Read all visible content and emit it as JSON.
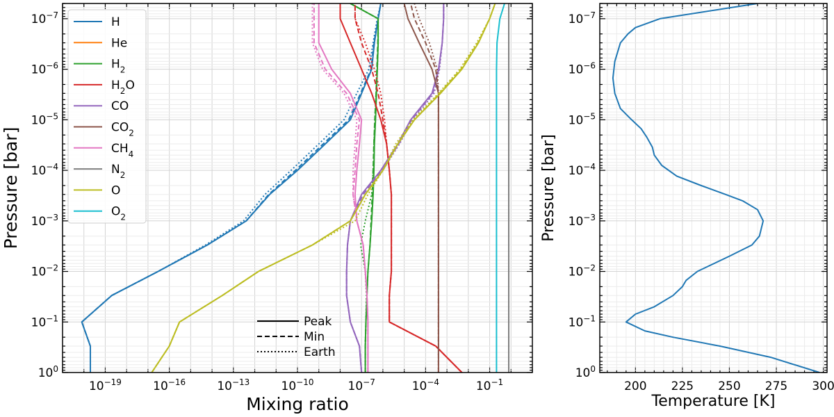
{
  "chart_data": [
    {
      "type": "line",
      "xlabel": "Mixing ratio",
      "ylabel": "Pressure [bar]",
      "xscale": "log",
      "yscale": "log",
      "y_inverted": true,
      "xlim": [
        1e-21,
        10
      ],
      "ylim": [
        1,
        5e-08
      ],
      "grid": true,
      "x_tick_labels": [
        "10⁻¹⁹",
        "10⁻¹⁶",
        "10⁻¹³",
        "10⁻¹⁰",
        "10⁻⁷",
        "10⁻⁴",
        "10⁻¹"
      ],
      "y_tick_labels": [
        "10⁰",
        "10⁻¹",
        "10⁻²",
        "10⁻³",
        "10⁻⁴",
        "10⁻⁵",
        "10⁻⁶",
        "10⁻⁷"
      ],
      "legend_position": "upper-left",
      "legend": [
        {
          "label": "H",
          "color": "#1f77b4"
        },
        {
          "label": "He",
          "color": "#ff7f0e"
        },
        {
          "label": "H₂",
          "color": "#2ca02c"
        },
        {
          "label": "H₂O",
          "color": "#d62728"
        },
        {
          "label": "CO",
          "color": "#9467bd"
        },
        {
          "label": "CO₂",
          "color": "#8c564b"
        },
        {
          "label": "CH₄",
          "color": "#e377c2"
        },
        {
          "label": "N₂",
          "color": "#7f7f7f"
        },
        {
          "label": "O",
          "color": "#bcbd22"
        },
        {
          "label": "O₂",
          "color": "#17becf"
        }
      ],
      "style_legend_position": "lower-center",
      "style_legend": [
        {
          "label": "Peak",
          "dash": "solid"
        },
        {
          "label": "Min",
          "dash": "dashed"
        },
        {
          "label": "Earth",
          "dash": "dotted"
        }
      ],
      "pressure_levels": [
        1,
        0.3,
        0.1,
        0.03,
        0.01,
        0.003,
        0.001,
        0.0003,
        0.0001,
        3e-05,
        1e-05,
        3e-06,
        1e-06,
        3e-07,
        1e-07,
        5e-08
      ],
      "series": [
        {
          "name": "H",
          "color": "#1f77b4",
          "style": "solid",
          "x": [
            2e-20,
            2e-20,
            8e-21,
            2e-19,
            3e-17,
            6e-15,
            4e-13,
            5e-12,
            1e-10,
            2e-09,
            3e-08,
            1e-07,
            3e-07,
            4e-07,
            6e-07,
            8e-07
          ]
        },
        {
          "name": "H",
          "color": "#1f77b4",
          "style": "dashed",
          "x": [
            2e-20,
            2e-20,
            8e-21,
            2e-19,
            3e-17,
            6e-15,
            4e-13,
            4.5e-12,
            8e-11,
            1.6e-09,
            2.5e-08,
            9e-08,
            2.8e-07,
            3.8e-07,
            6e-07,
            8e-07
          ]
        },
        {
          "name": "H",
          "color": "#1f77b4",
          "style": "dotted",
          "x": [
            2e-20,
            2e-20,
            8e-21,
            2e-19,
            3e-17,
            5e-15,
            3e-13,
            3e-12,
            5e-11,
            1e-09,
            1.5e-08,
            6e-08,
            2.2e-07,
            3.5e-07,
            5.5e-07,
            8e-07
          ]
        },
        {
          "name": "H₂",
          "color": "#2ca02c",
          "style": "solid",
          "x": [
            1.5e-07,
            1.5e-07,
            1.6e-07,
            1.8e-07,
            2e-07,
            2.5e-07,
            3e-07,
            3.5e-07,
            3.8e-07,
            4e-07,
            4.5e-07,
            5e-07,
            5.5e-07,
            6e-07,
            6e-07,
            3e-08
          ]
        },
        {
          "name": "H₂",
          "color": "#2ca02c",
          "style": "dashed",
          "x": [
            1.5e-07,
            1.5e-07,
            1.6e-07,
            1.8e-07,
            2e-07,
            2.5e-07,
            2.8e-07,
            3.2e-07,
            3.5e-07,
            3.8e-07,
            4.2e-07,
            4.8e-07,
            5.2e-07,
            5.8e-07,
            6e-07,
            3e-08
          ]
        },
        {
          "name": "H₂",
          "color": "#2ca02c",
          "style": "dotted",
          "x": [
            1.5e-07,
            1.5e-07,
            1.6e-07,
            1.7e-07,
            1.5e-07,
            9e-08,
            1.5e-07,
            3e-07,
            3.5e-07,
            3.8e-07,
            4.2e-07,
            4.8e-07,
            5.5e-07,
            6e-07,
            6e-07,
            3e-08
          ]
        },
        {
          "name": "H₂O",
          "color": "#d62728",
          "style": "solid",
          "x": [
            0.005,
            0.0003,
            2e-06,
            2e-06,
            2.5e-06,
            2.5e-06,
            2.5e-06,
            2.5e-06,
            2e-06,
            1.5e-06,
            8e-07,
            3e-07,
            1e-07,
            3e-08,
            1e-08,
            1e-08
          ]
        },
        {
          "name": "H₂O",
          "color": "#d62728",
          "style": "dashed",
          "x": [
            0.005,
            0.0003,
            2e-06,
            2e-06,
            2.5e-06,
            2.5e-06,
            2.5e-06,
            2.5e-06,
            2e-06,
            1.5e-06,
            1e-06,
            6e-07,
            3e-07,
            1e-07,
            5e-08,
            5e-08
          ]
        },
        {
          "name": "H₂O",
          "color": "#d62728",
          "style": "dotted",
          "x": [
            0.005,
            0.0003,
            2e-06,
            2e-06,
            2.5e-06,
            2.5e-06,
            2.5e-06,
            2.5e-06,
            2e-06,
            1.5e-06,
            1.2e-06,
            8e-07,
            4e-07,
            1.5e-07,
            5e-08,
            5e-08
          ]
        },
        {
          "name": "CO",
          "color": "#9467bd",
          "style": "solid",
          "x": [
            1e-07,
            8e-08,
            3e-08,
            2e-08,
            2e-08,
            2.2e-08,
            3e-08,
            1e-07,
            8e-07,
            5e-06,
            2e-05,
            0.0002,
            0.0004,
            0.0006,
            0.0007,
            0.0007
          ]
        },
        {
          "name": "CO",
          "color": "#9467bd",
          "style": "dashed",
          "x": [
            1e-07,
            8e-08,
            3e-08,
            2e-08,
            2e-08,
            2.2e-08,
            3e-08,
            1.2e-07,
            9e-07,
            5.5e-06,
            2.2e-05,
            0.00022,
            0.00042,
            0.0006,
            0.0007,
            0.0007
          ]
        },
        {
          "name": "CO",
          "color": "#9467bd",
          "style": "dotted",
          "x": [
            1e-07,
            8e-08,
            3e-08,
            2e-08,
            2e-08,
            2.2e-08,
            3e-08,
            1.5e-07,
            1e-06,
            6e-06,
            2.5e-05,
            0.00025,
            0.00045,
            0.0006,
            0.0007,
            0.0007
          ]
        },
        {
          "name": "CO₂",
          "color": "#8c564b",
          "style": "solid",
          "x": [
            0.0004,
            0.0004,
            0.0004,
            0.0004,
            0.0004,
            0.0004,
            0.0004,
            0.0004,
            0.0004,
            0.0004,
            0.0004,
            0.0004,
            0.0002,
            5e-05,
            1.5e-05,
            1e-05
          ]
        },
        {
          "name": "CO₂",
          "color": "#8c564b",
          "style": "dashed",
          "x": [
            0.0004,
            0.0004,
            0.0004,
            0.0004,
            0.0004,
            0.0004,
            0.0004,
            0.0004,
            0.0004,
            0.0004,
            0.0004,
            0.0004,
            0.0003,
            0.0001,
            3e-05,
            2e-05
          ]
        },
        {
          "name": "CO₂",
          "color": "#8c564b",
          "style": "dotted",
          "x": [
            0.0004,
            0.0004,
            0.0004,
            0.0004,
            0.0004,
            0.0004,
            0.0004,
            0.0004,
            0.0004,
            0.0004,
            0.0004,
            0.0004,
            0.00035,
            0.00015,
            5e-05,
            3e-05
          ]
        },
        {
          "name": "CH₄",
          "color": "#e377c2",
          "style": "solid",
          "x": [
            2e-07,
            2e-07,
            2e-07,
            1.8e-07,
            1.5e-07,
            1.2e-07,
            6e-08,
            5e-08,
            6e-08,
            8e-08,
            1e-07,
            3e-08,
            4e-09,
            1e-09,
            1e-09,
            1e-09
          ]
        },
        {
          "name": "CH₄",
          "color": "#e377c2",
          "style": "dashed",
          "x": [
            2e-07,
            2e-07,
            2e-07,
            1.8e-07,
            1.5e-07,
            1.2e-07,
            6e-08,
            4e-08,
            5e-08,
            6e-08,
            8e-08,
            2e-08,
            2e-09,
            6e-10,
            6e-10,
            6e-10
          ]
        },
        {
          "name": "CH₄",
          "color": "#e377c2",
          "style": "dotted",
          "x": [
            2e-07,
            2e-07,
            2e-07,
            1.8e-07,
            1.5e-07,
            1.2e-07,
            6e-08,
            4e-08,
            4e-08,
            5e-08,
            6e-08,
            1.5e-08,
            1.5e-09,
            5e-10,
            5e-10,
            5e-10
          ]
        },
        {
          "name": "N₂",
          "color": "#7f7f7f",
          "style": "solid",
          "x": [
            0.78,
            0.78,
            0.78,
            0.78,
            0.78,
            0.78,
            0.78,
            0.78,
            0.78,
            0.78,
            0.78,
            0.78,
            0.78,
            0.78,
            0.78,
            0.78
          ]
        },
        {
          "name": "O",
          "color": "#bcbd22",
          "style": "solid",
          "x": [
            1.5e-17,
            1e-16,
            3e-16,
            3e-14,
            1.5e-12,
            5e-10,
            3e-08,
            1.5e-07,
            1e-06,
            5e-06,
            3e-05,
            0.0005,
            0.005,
            0.03,
            0.1,
            0.18
          ]
        },
        {
          "name": "O",
          "color": "#bcbd22",
          "style": "dashed",
          "x": [
            1.5e-17,
            1e-16,
            3e-16,
            3e-14,
            1.5e-12,
            5e-10,
            3e-08,
            1.5e-07,
            1e-06,
            5e-06,
            3e-05,
            0.00045,
            0.0045,
            0.028,
            0.1,
            0.18
          ]
        },
        {
          "name": "O",
          "color": "#bcbd22",
          "style": "dotted",
          "x": [
            1.5e-17,
            1e-16,
            3e-16,
            3e-14,
            1.5e-12,
            5e-10,
            5e-08,
            2e-07,
            1e-06,
            4e-06,
            2.5e-05,
            0.0004,
            0.004,
            0.025,
            0.1,
            0.18
          ]
        },
        {
          "name": "O₂",
          "color": "#17becf",
          "style": "solid",
          "x": [
            0.21,
            0.21,
            0.21,
            0.21,
            0.21,
            0.21,
            0.21,
            0.21,
            0.21,
            0.21,
            0.21,
            0.21,
            0.21,
            0.22,
            0.3,
            0.5
          ]
        }
      ]
    },
    {
      "type": "line",
      "xlabel": "Temperature [K]",
      "ylabel": "Pressure [bar]",
      "xlim": [
        181,
        302
      ],
      "ylim": [
        1,
        5e-08
      ],
      "yscale": "log",
      "y_inverted": true,
      "grid": true,
      "x_tick_labels": [
        "200",
        "225",
        "250",
        "275",
        "300"
      ],
      "y_tick_labels": [
        "10⁰",
        "10⁻¹",
        "10⁻²",
        "10⁻³",
        "10⁻⁴",
        "10⁻⁵",
        "10⁻⁶",
        "10⁻⁷"
      ],
      "series": [
        {
          "name": "",
          "color": "#1f77b4",
          "pressure": [
            1,
            0.5,
            0.3,
            0.2,
            0.15,
            0.1,
            0.07,
            0.05,
            0.03,
            0.02,
            0.015,
            0.01,
            0.005,
            0.003,
            0.002,
            0.001,
            0.0006,
            0.0004,
            0.0003,
            0.0002,
            0.00013,
            8e-05,
            5e-05,
            3.5e-05,
            2.2e-05,
            1.5e-05,
            1e-05,
            6e-06,
            3e-06,
            1.5e-06,
            7e-07,
            3e-07,
            2e-07,
            1.5e-07,
            1e-07,
            5e-08
          ],
          "temperature": [
            298,
            272,
            245,
            220,
            205,
            195,
            200,
            210,
            220,
            225,
            227,
            233,
            250,
            262,
            266,
            268,
            265,
            257,
            248,
            235,
            222,
            214,
            210,
            209,
            206,
            203,
            198,
            192,
            189,
            188,
            189,
            192,
            196,
            200,
            213,
            265
          ]
        }
      ]
    }
  ]
}
